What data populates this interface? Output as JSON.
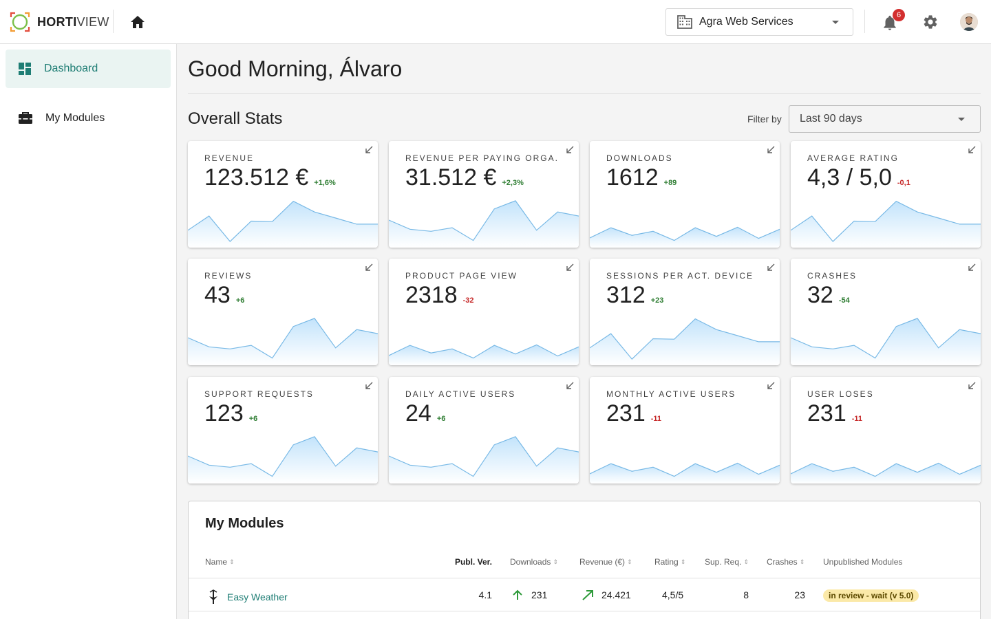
{
  "header": {
    "logo_bold": "HORTI",
    "logo_light": "VIEW",
    "organization": "Agra Web Services",
    "notification_count": "6"
  },
  "sidebar": {
    "items": [
      {
        "label": "Dashboard",
        "icon": "dashboard-icon",
        "active": true
      },
      {
        "label": "My Modules",
        "icon": "briefcase-icon",
        "active": false
      }
    ]
  },
  "main": {
    "greeting": "Good Morning, Álvaro",
    "section_title": "Overall Stats",
    "filter_label": "Filter by",
    "filter_value": "Last 90 days"
  },
  "colors": {
    "accent": "#1e7d74",
    "positive": "#2e7d32",
    "negative": "#c62828",
    "spark_line": "#78b9e6",
    "spark_fill": "#c2e3fb"
  },
  "cards": [
    {
      "title": "REVENUE",
      "value": "123.512 €",
      "delta": "+1,6%",
      "trend": "pos",
      "spark": 0
    },
    {
      "title": "REVENUE PER PAYING ORGA.",
      "value": "31.512 €",
      "delta": "+2,3%",
      "trend": "pos",
      "spark": 1
    },
    {
      "title": "DOWNLOADS",
      "value": "1612",
      "delta": "+89",
      "trend": "pos",
      "spark": 2
    },
    {
      "title": "AVERAGE RATING",
      "value": "4,3 / 5,0",
      "delta": "-0,1",
      "trend": "neg",
      "spark": 0
    },
    {
      "title": "REVIEWS",
      "value": "43",
      "delta": "+6",
      "trend": "pos",
      "spark": 1
    },
    {
      "title": "PRODUCT PAGE VIEW",
      "value": "2318",
      "delta": "-32",
      "trend": "neg",
      "spark": 2
    },
    {
      "title": "SESSIONS PER ACT. DEVICE",
      "value": "312",
      "delta": "+23",
      "trend": "pos",
      "spark": 0
    },
    {
      "title": "CRASHES",
      "value": "32",
      "delta": "-54",
      "trend": "pos",
      "spark": 1
    },
    {
      "title": "SUPPORT REQUESTS",
      "value": "123",
      "delta": "+6",
      "trend": "pos",
      "spark": 1
    },
    {
      "title": "DAILY ACTIVE USERS",
      "value": "24",
      "delta": "+6",
      "trend": "pos",
      "spark": 1
    },
    {
      "title": "MONTHLY ACTIVE USERS",
      "value": "231",
      "delta": "-11",
      "trend": "neg",
      "spark": 2
    },
    {
      "title": "USER LOSES",
      "value": "231",
      "delta": "-11",
      "trend": "neg",
      "spark": 2
    }
  ],
  "sparklines": [
    [
      0.3,
      0.58,
      0.08,
      0.48,
      0.47,
      0.87,
      0.66,
      0.54,
      0.42,
      0.42
    ],
    [
      0.5,
      0.32,
      0.28,
      0.35,
      0.1,
      0.72,
      0.88,
      0.3,
      0.66,
      0.58
    ],
    [
      0.15,
      0.35,
      0.2,
      0.28,
      0.1,
      0.35,
      0.18,
      0.36,
      0.14,
      0.32
    ]
  ],
  "modules": {
    "title": "My Modules",
    "columns": [
      "Name",
      "Publ. Ver.",
      "Downloads",
      "Revenue (€)",
      "Rating",
      "Sup. Req.",
      "Crashes",
      "Unpublished Modules"
    ],
    "rows": [
      {
        "name": "Easy Weather",
        "version": "4.1",
        "downloads": "231",
        "revenue": "24.421",
        "rating": "4,5/5",
        "support": "8",
        "crashes": "23",
        "status": "in review - wait (v 5.0)"
      }
    ]
  }
}
